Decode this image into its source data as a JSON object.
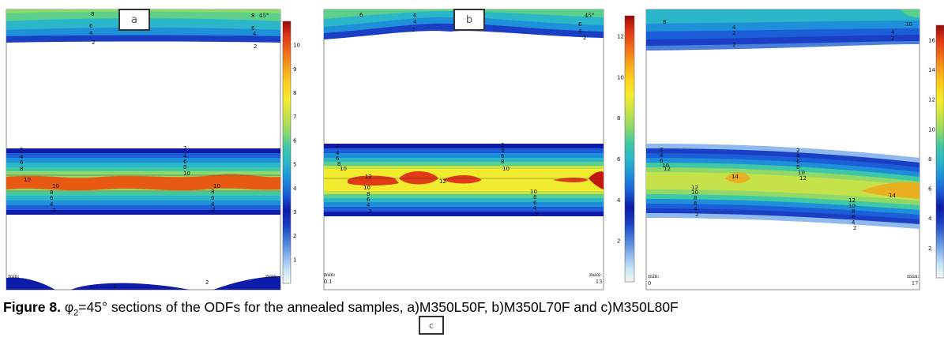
{
  "caption": {
    "label": "Figure 8.",
    "symbol": "φ",
    "subscript": "2",
    "rest": "=45° sections of the ODFs for the annealed samples, a)M350L50F, b)M350L70F and c)M350L80F"
  },
  "chart_data": [
    {
      "type": "heatmap",
      "panel_label": "a",
      "angle_text": "45°",
      "min_label": "min:",
      "max_label": "max:",
      "colorbar_ticks": [
        "1",
        "2",
        "3",
        "4",
        "5",
        "6",
        "7",
        "8",
        "9",
        "10"
      ],
      "colorbar_range": [
        0,
        11
      ],
      "bands": [
        {
          "name": "top",
          "peak": 8,
          "contour_labels": [
            "8",
            "6",
            "4",
            "2"
          ]
        },
        {
          "name": "middle",
          "peak": 11,
          "contour_labels": [
            "2",
            "4",
            "6",
            "8",
            "10",
            "10",
            "8",
            "6",
            "4",
            "2"
          ]
        },
        {
          "name": "bottom",
          "peak": 2,
          "contour_labels": [
            "2",
            "2"
          ]
        }
      ]
    },
    {
      "type": "heatmap",
      "panel_label": "b",
      "angle_text": "45°",
      "min_label": "min:",
      "min_value": "0.1",
      "max_label": "max:",
      "max_value": "13",
      "colorbar_ticks": [
        "2",
        "4",
        "6",
        "8",
        "10",
        "12"
      ],
      "colorbar_range": [
        0,
        13
      ],
      "bands": [
        {
          "name": "top",
          "peak": 6,
          "contour_labels": [
            "6",
            "6",
            "4",
            "2"
          ]
        },
        {
          "name": "middle",
          "peak": 13,
          "contour_labels": [
            "2",
            "4",
            "6",
            "8",
            "10",
            "12",
            "12",
            "10",
            "8",
            "6",
            "4",
            "2"
          ]
        }
      ]
    },
    {
      "type": "heatmap",
      "panel_label": "c",
      "min_label": "min:",
      "min_value": "0",
      "max_label": "max:",
      "max_value": "17",
      "colorbar_ticks": [
        "2",
        "4",
        "6",
        "8",
        "10",
        "12",
        "14",
        "16"
      ],
      "colorbar_range": [
        0,
        17
      ],
      "bands": [
        {
          "name": "top",
          "peak": 10,
          "contour_labels": [
            "8",
            "4",
            "2",
            "10"
          ]
        },
        {
          "name": "middle",
          "peak": 17,
          "contour_labels": [
            "2",
            "4",
            "6",
            "8",
            "10",
            "12",
            "14",
            "14",
            "12",
            "10",
            "8",
            "6",
            "4",
            "2"
          ]
        }
      ]
    }
  ],
  "palette": [
    "#f4f4f4",
    "#c8e6fa",
    "#8fb8ec",
    "#4a7fd9",
    "#1a3fc4",
    "#0d1ba8",
    "#1b5ed8",
    "#1e8fd9",
    "#2bb6c9",
    "#3fc8a6",
    "#5ccf8a",
    "#8fd86a",
    "#c6e24a",
    "#f2ec2e",
    "#ffd21e",
    "#f7a61c",
    "#ef6e1c",
    "#e23a16",
    "#c4180f",
    "#9a0a08"
  ]
}
